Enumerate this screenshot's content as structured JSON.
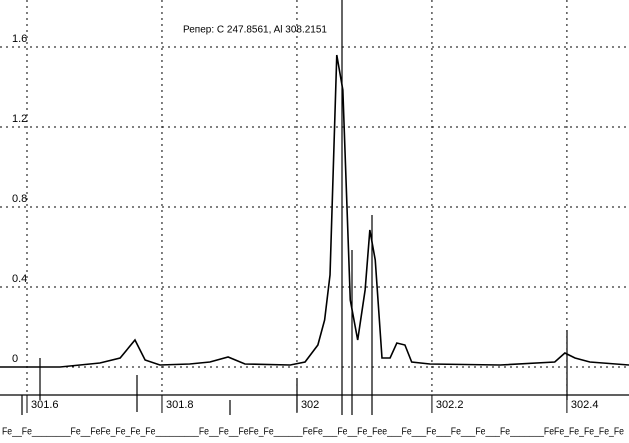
{
  "chart_data": {
    "type": "line",
    "title": "Репер: C  247.8561, Al  308.2151",
    "x": [
      301.56,
      301.649,
      301.708,
      301.738,
      301.76,
      301.775,
      301.797,
      301.841,
      301.871,
      301.898,
      301.923,
      301.99,
      302.012,
      302.031,
      302.041,
      302.049,
      302.059,
      302.068,
      302.079,
      302.09,
      302.101,
      302.108,
      302.116,
      302.126,
      302.138,
      302.148,
      302.16,
      302.17,
      302.197,
      302.301,
      302.382,
      302.397,
      302.412,
      302.434,
      302.492
    ],
    "series": [
      {
        "color": "#000000",
        "values": [
          0,
          0,
          0.02,
          0.045,
          0.135,
          0.035,
          0.01,
          0.015,
          0.025,
          0.05,
          0.015,
          0.01,
          0.025,
          0.11,
          0.235,
          0.46,
          1.56,
          1.385,
          0.335,
          0.135,
          0.385,
          0.685,
          0.535,
          0.045,
          0.045,
          0.12,
          0.11,
          0.025,
          0.015,
          0.01,
          0.025,
          0.07,
          0.045,
          0.025,
          0.01
        ]
      }
    ],
    "xlim": [
      301.56,
      302.492
    ],
    "ylim": [
      -0.14,
      1.835
    ],
    "xticks": [
      301.6,
      301.8,
      302,
      302.2,
      302.4
    ],
    "yticks": [
      0,
      0.4,
      0.8,
      1.2,
      1.6
    ],
    "grid": true,
    "element_labels": "Fe__Fe________Fe__FeFe_Fe_Fe_Fe_________Fe__Fe__FeFe_Fe______FeFe___Fe__Fe_Fee___Fe___Fe___Fe___Fe___Fe_______FeFe_Fe_Fe_Fe_Fe"
  }
}
